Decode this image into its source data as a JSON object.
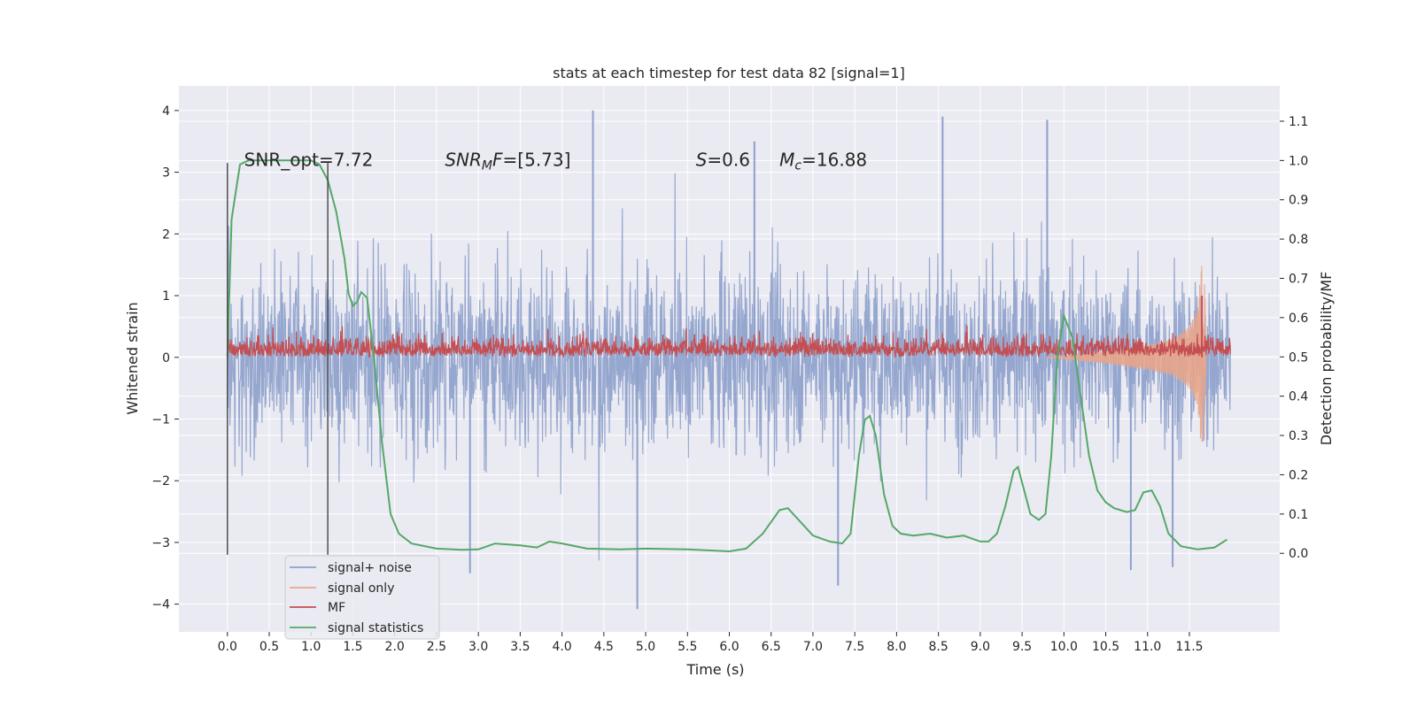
{
  "chart_data": {
    "type": "line",
    "title": "stats at each timestep for test data 82 [signal=1]",
    "xlabel": "Time (s)",
    "ylabel": "Whitened strain",
    "ylabel_right": "Detection probability/MF",
    "xlim": [
      -0.58,
      12.58
    ],
    "ylim": [
      -4.45,
      4.4
    ],
    "ylim_right": [
      -0.2,
      1.19
    ],
    "x_ticks": [
      0.0,
      0.5,
      1.0,
      1.5,
      2.0,
      2.5,
      3.0,
      3.5,
      4.0,
      4.5,
      5.0,
      5.5,
      6.0,
      6.5,
      7.0,
      7.5,
      8.0,
      8.5,
      9.0,
      9.5,
      10.0,
      10.5,
      11.0,
      11.5
    ],
    "x_tick_labels": [
      "0.0",
      "0.5",
      "1.0",
      "1.5",
      "2.0",
      "2.5",
      "3.0",
      "3.5",
      "4.0",
      "4.5",
      "5.0",
      "5.5",
      "6.0",
      "6.5",
      "7.0",
      "7.5",
      "8.0",
      "8.5",
      "9.0",
      "9.5",
      "10.0",
      "10.5",
      "11.0",
      "11.5"
    ],
    "y_ticks": [
      -4,
      -3,
      -2,
      -1,
      0,
      1,
      2,
      3,
      4
    ],
    "y_tick_labels": [
      "−4",
      "−3",
      "−2",
      "−1",
      "0",
      "1",
      "2",
      "3",
      "4"
    ],
    "y_right_ticks": [
      0.0,
      0.1,
      0.2,
      0.3,
      0.4,
      0.5,
      0.6,
      0.7,
      0.8,
      0.9,
      1.0,
      1.1
    ],
    "y_right_tick_labels": [
      "0.0",
      "0.1",
      "0.2",
      "0.3",
      "0.4",
      "0.5",
      "0.6",
      "0.7",
      "0.8",
      "0.9",
      "1.0",
      "1.1"
    ],
    "grid": true,
    "legend_position": "lower-left",
    "annotations": [
      {
        "text": "SNR_opt=7.72",
        "x": 0.2,
        "y": 3.1
      },
      {
        "text": "SNR_MF=[5.73]",
        "x": 2.6,
        "y": 3.1
      },
      {
        "text": "S=0.6",
        "x": 5.6,
        "y": 3.1
      },
      {
        "text": "M_c=16.88",
        "x": 6.6,
        "y": 3.1
      }
    ],
    "vlines": [
      {
        "x": 0.0,
        "ymin": -3.2,
        "ymax": 3.15
      },
      {
        "x": 1.2,
        "ymin": -3.2,
        "ymax": 3.15
      }
    ],
    "series": [
      {
        "name": "signal+ noise",
        "color": "#8da0cb",
        "axis": "left",
        "x_range": [
          0.0,
          11.99
        ],
        "typical_envelope": [
          -2.0,
          2.0
        ],
        "peaks": [
          {
            "x": 4.37,
            "y": 4.0
          },
          {
            "x": 4.9,
            "y": -4.08
          },
          {
            "x": 8.55,
            "y": 3.9
          },
          {
            "x": 9.8,
            "y": 3.85
          },
          {
            "x": 11.3,
            "y": -3.4
          },
          {
            "x": 2.9,
            "y": -3.5
          },
          {
            "x": 10.8,
            "y": -3.45
          },
          {
            "x": 6.3,
            "y": 3.5
          },
          {
            "x": 7.3,
            "y": -3.7
          }
        ]
      },
      {
        "name": "signal only",
        "color": "#e8a58a",
        "axis": "left",
        "x_range": [
          9.8,
          11.7
        ],
        "envelope_points": [
          [
            9.8,
            0.0
          ],
          [
            10.5,
            0.1
          ],
          [
            11.0,
            0.2
          ],
          [
            11.3,
            0.3
          ],
          [
            11.5,
            0.5
          ],
          [
            11.6,
            0.8
          ],
          [
            11.65,
            1.6
          ],
          [
            11.68,
            -1.5
          ],
          [
            11.7,
            0.0
          ]
        ]
      },
      {
        "name": "MF",
        "color": "#c44e52",
        "axis": "left",
        "x_range": [
          0.0,
          11.99
        ],
        "typical_envelope": [
          0.0,
          0.55
        ],
        "peaks": [
          {
            "x": 11.65,
            "y": 1.0
          }
        ]
      },
      {
        "name": "signal statistics",
        "color": "#55a868",
        "axis": "right",
        "points": [
          [
            0.0,
            0.5
          ],
          [
            0.05,
            0.85
          ],
          [
            0.1,
            0.92
          ],
          [
            0.15,
            0.99
          ],
          [
            0.25,
            1.0
          ],
          [
            0.5,
            1.0
          ],
          [
            0.8,
            1.0
          ],
          [
            1.0,
            1.0
          ],
          [
            1.1,
            0.99
          ],
          [
            1.2,
            0.95
          ],
          [
            1.3,
            0.87
          ],
          [
            1.4,
            0.75
          ],
          [
            1.45,
            0.66
          ],
          [
            1.5,
            0.63
          ],
          [
            1.55,
            0.64
          ],
          [
            1.6,
            0.665
          ],
          [
            1.67,
            0.65
          ],
          [
            1.75,
            0.5
          ],
          [
            1.85,
            0.28
          ],
          [
            1.95,
            0.1
          ],
          [
            2.05,
            0.05
          ],
          [
            2.2,
            0.025
          ],
          [
            2.5,
            0.012
          ],
          [
            2.8,
            0.009
          ],
          [
            3.0,
            0.01
          ],
          [
            3.2,
            0.025
          ],
          [
            3.5,
            0.02
          ],
          [
            3.7,
            0.015
          ],
          [
            3.85,
            0.03
          ],
          [
            4.0,
            0.025
          ],
          [
            4.3,
            0.012
          ],
          [
            4.7,
            0.01
          ],
          [
            5.0,
            0.012
          ],
          [
            5.5,
            0.01
          ],
          [
            6.0,
            0.005
          ],
          [
            6.2,
            0.012
          ],
          [
            6.4,
            0.05
          ],
          [
            6.6,
            0.11
          ],
          [
            6.7,
            0.115
          ],
          [
            6.85,
            0.08
          ],
          [
            7.0,
            0.045
          ],
          [
            7.2,
            0.03
          ],
          [
            7.35,
            0.025
          ],
          [
            7.45,
            0.05
          ],
          [
            7.55,
            0.25
          ],
          [
            7.62,
            0.34
          ],
          [
            7.68,
            0.35
          ],
          [
            7.75,
            0.3
          ],
          [
            7.85,
            0.15
          ],
          [
            7.95,
            0.07
          ],
          [
            8.05,
            0.05
          ],
          [
            8.2,
            0.045
          ],
          [
            8.4,
            0.05
          ],
          [
            8.6,
            0.04
          ],
          [
            8.8,
            0.045
          ],
          [
            9.0,
            0.03
          ],
          [
            9.1,
            0.03
          ],
          [
            9.2,
            0.05
          ],
          [
            9.3,
            0.12
          ],
          [
            9.4,
            0.21
          ],
          [
            9.45,
            0.22
          ],
          [
            9.5,
            0.18
          ],
          [
            9.6,
            0.1
          ],
          [
            9.7,
            0.085
          ],
          [
            9.78,
            0.1
          ],
          [
            9.85,
            0.25
          ],
          [
            9.92,
            0.5
          ],
          [
            10.0,
            0.605
          ],
          [
            10.1,
            0.55
          ],
          [
            10.2,
            0.4
          ],
          [
            10.3,
            0.25
          ],
          [
            10.4,
            0.16
          ],
          [
            10.5,
            0.13
          ],
          [
            10.6,
            0.115
          ],
          [
            10.75,
            0.105
          ],
          [
            10.85,
            0.11
          ],
          [
            10.95,
            0.155
          ],
          [
            11.05,
            0.16
          ],
          [
            11.15,
            0.12
          ],
          [
            11.25,
            0.05
          ],
          [
            11.4,
            0.018
          ],
          [
            11.6,
            0.01
          ],
          [
            11.8,
            0.015
          ],
          [
            11.95,
            0.035
          ]
        ]
      }
    ]
  }
}
